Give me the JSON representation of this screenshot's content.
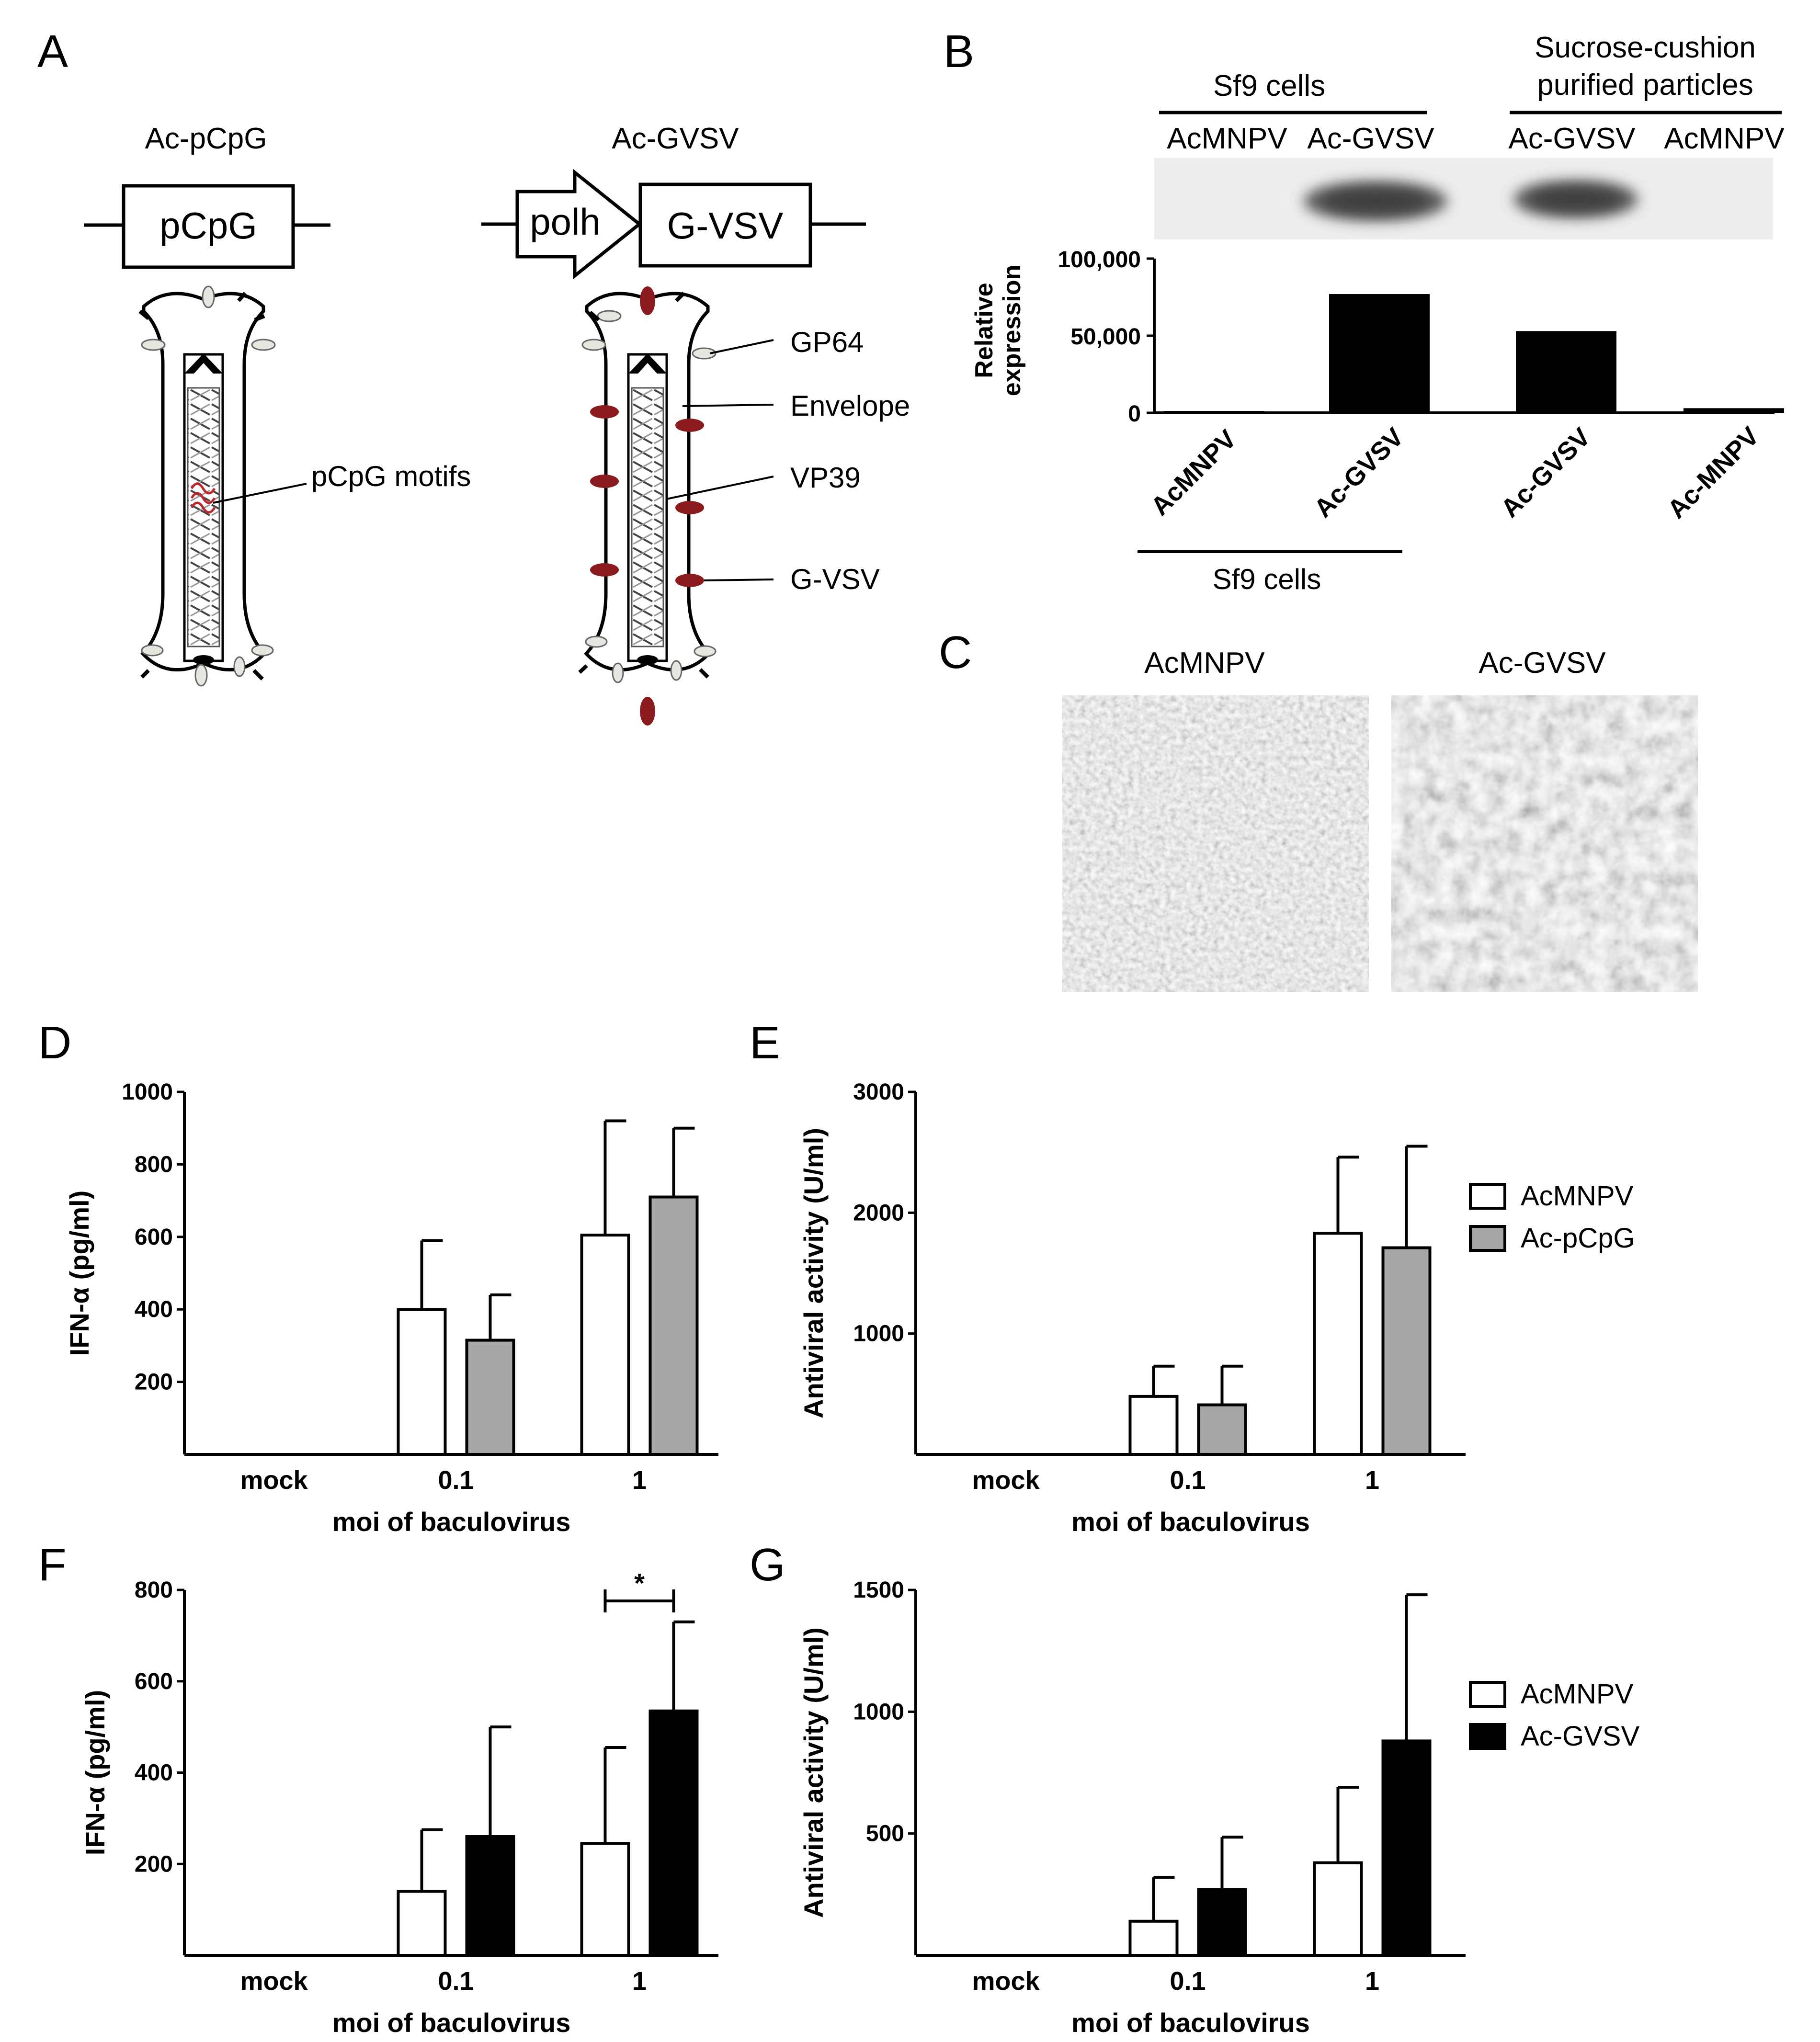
{
  "panels": {
    "A": {
      "label": "A",
      "left_title": "Ac-pCpG",
      "left_box": "pCpG",
      "left_callout": "pCpG motifs",
      "right_title": "Ac-GVSV",
      "right_promoter": "polh",
      "right_box": "G-VSV",
      "callouts": [
        "GP64",
        "Envelope",
        "VP39",
        "G-VSV"
      ]
    },
    "B": {
      "label": "B",
      "group1": "Sf9 cells",
      "group2_line1": "Sucrose-cushion",
      "group2_line2": "purified particles",
      "lanes": [
        "AcMNPV",
        "Ac-GVSV",
        "Ac-GVSV",
        "AcMNPV"
      ],
      "gel_band_color": "#5a5a5a",
      "chart_data": {
        "type": "bar",
        "categories": [
          "AcMNPV",
          "Ac-GVSV",
          "Ac-GVSV",
          "Ac-MNPV"
        ],
        "values": [
          500,
          77000,
          53000,
          3000
        ],
        "ylabel_line1": "Relative",
        "ylabel_line2": "expression",
        "yticks": [
          "100,000",
          "50,000",
          "0"
        ],
        "ylim": [
          0,
          100000
        ],
        "bracket_label": "Sf9 cells",
        "bar_color": "#000000"
      }
    },
    "C": {
      "label": "C",
      "left_title": "AcMNPV",
      "right_title": "Ac-GVSV"
    },
    "D": {
      "label": "D",
      "chart_data": {
        "type": "bar",
        "categories": [
          "mock",
          "0.1",
          "1"
        ],
        "series": [
          {
            "name": "AcMNPV",
            "values": [
              0,
              400,
              605
            ],
            "errors": [
              0,
              190,
              315
            ],
            "color": "#ffffff"
          },
          {
            "name": "Ac-pCpG",
            "values": [
              0,
              315,
              710
            ],
            "errors": [
              0,
              125,
              190
            ],
            "color": "#a6a6a6"
          }
        ],
        "ylabel": "IFN-α (pg/ml)",
        "xlabel": "moi of baculovirus",
        "yticks": [
          "1000",
          "800",
          "600",
          "400",
          "200"
        ],
        "ylim": [
          0,
          1000
        ]
      }
    },
    "E": {
      "label": "E",
      "chart_data": {
        "type": "bar",
        "categories": [
          "mock",
          "0.1",
          "1"
        ],
        "series": [
          {
            "name": "AcMNPV",
            "values": [
              0,
              480,
              1830
            ],
            "errors": [
              0,
              250,
              630
            ],
            "color": "#ffffff"
          },
          {
            "name": "Ac-pCpG",
            "values": [
              0,
              410,
              1710
            ],
            "errors": [
              0,
              320,
              840
            ],
            "color": "#a6a6a6"
          }
        ],
        "ylabel": "Antiviral activity (U/ml)",
        "xlabel": "moi of baculovirus",
        "yticks": [
          "3000",
          "2000",
          "1000"
        ],
        "ylim": [
          0,
          3000
        ],
        "legend": [
          "AcMNPV",
          "Ac-pCpG"
        ]
      }
    },
    "F": {
      "label": "F",
      "chart_data": {
        "type": "bar",
        "categories": [
          "mock",
          "0.1",
          "1"
        ],
        "series": [
          {
            "name": "AcMNPV",
            "values": [
              0,
              140,
              245
            ],
            "errors": [
              0,
              135,
              210
            ],
            "color": "#ffffff"
          },
          {
            "name": "Ac-GVSV",
            "values": [
              0,
              260,
              535
            ],
            "errors": [
              0,
              240,
              195
            ],
            "color": "#000000"
          }
        ],
        "ylabel": "IFN-α (pg/ml)",
        "xlabel": "moi of baculovirus",
        "yticks": [
          "800",
          "600",
          "400",
          "200"
        ],
        "ylim": [
          0,
          800
        ],
        "significance": "*"
      }
    },
    "G": {
      "label": "G",
      "chart_data": {
        "type": "bar",
        "categories": [
          "mock",
          "0.1",
          "1"
        ],
        "series": [
          {
            "name": "AcMNPV",
            "values": [
              0,
              140,
              380
            ],
            "errors": [
              0,
              180,
              310
            ],
            "color": "#ffffff"
          },
          {
            "name": "Ac-GVSV",
            "values": [
              0,
              270,
              880
            ],
            "errors": [
              0,
              215,
              600
            ],
            "color": "#000000"
          }
        ],
        "ylabel": "Antiviral activity (U/ml)",
        "xlabel": "moi of baculovirus",
        "yticks": [
          "1500",
          "1000",
          "500"
        ],
        "ylim": [
          0,
          1500
        ],
        "legend": [
          "AcMNPV",
          "Ac-GVSV"
        ]
      }
    }
  }
}
